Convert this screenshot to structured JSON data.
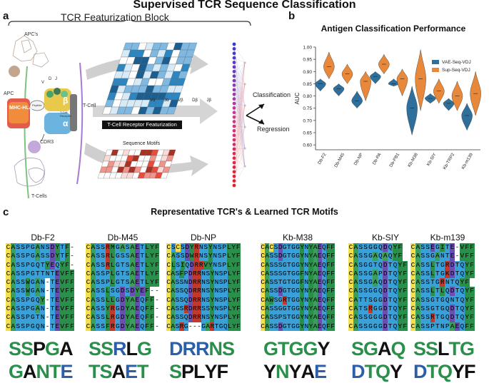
{
  "main_title": "Supervised TCR Sequence Classification",
  "panel_a": {
    "letter": "a",
    "block_title": "TCR Featurization Block",
    "labels": {
      "apcs": "APC's",
      "apc": "APC",
      "mhc": "MHC-HLA",
      "peptide": "Peptide",
      "v": "V",
      "d": "D",
      "j": "J",
      "beta": "β",
      "alpha": "α",
      "tcell_receptor": "T-Cell Receptor",
      "tcell": "T-Cell",
      "cdr3": "CDR3",
      "tcells": "T-Cells",
      "featurization": "T-Cell Receptor Featurization",
      "seq_motifs": "Sequence Motifs",
      "classification": "Classification",
      "regression": "Regression"
    },
    "gene_labels": [
      "Vα",
      "Jα",
      "Vβ",
      "Dβ",
      "Jβ"
    ]
  },
  "panel_b": {
    "letter": "b",
    "chart_data": {
      "type": "violin",
      "title": "Antigen Classification Performance",
      "ylabel": "AUC",
      "ylim": [
        0.58,
        1.0
      ],
      "yticks": [
        0.6,
        0.65,
        0.7,
        0.75,
        0.8,
        0.85,
        0.9,
        0.95,
        1.0
      ],
      "categories": [
        "Db-F2",
        "Db-M45",
        "Db-NP",
        "Db-PA",
        "Db-PB1",
        "Kb-M38",
        "Kb-SIY",
        "Kb-TRP2",
        "Kb-m139"
      ],
      "legend_position": "top-right",
      "series": [
        {
          "name": "VAE-Seq-VDJ",
          "color": "#2e6f9b",
          "median": [
            0.85,
            0.83,
            0.78,
            0.88,
            0.85,
            0.75,
            0.79,
            0.77,
            0.72
          ],
          "min": [
            0.82,
            0.8,
            0.75,
            0.85,
            0.84,
            0.64,
            0.77,
            0.74,
            0.66
          ],
          "max": [
            0.87,
            0.85,
            0.82,
            0.9,
            0.87,
            0.84,
            0.81,
            0.79,
            0.77
          ]
        },
        {
          "name": "Sup-Seq-VDJ",
          "color": "#e8883a",
          "median": [
            0.92,
            0.89,
            0.86,
            0.93,
            0.87,
            0.87,
            0.82,
            0.8,
            0.81
          ],
          "min": [
            0.87,
            0.85,
            0.78,
            0.89,
            0.8,
            0.74,
            0.77,
            0.74,
            0.72
          ],
          "max": [
            0.98,
            0.93,
            0.9,
            0.97,
            0.91,
            0.99,
            0.87,
            0.86,
            0.9
          ]
        }
      ]
    }
  },
  "panel_c": {
    "letter": "c",
    "title": "Representative TCR's & Learned TCR Motifs",
    "panels": [
      {
        "name": "Db-F2",
        "seqs": [
          "CASSPGANSDYTF-",
          "CASSPGASSDYTF-",
          "CASSPGQTYEQYF-",
          "CASSPGTTNTEVFF",
          "CASSWGAN-TEVFF",
          "CASSWGAN-TEVFF",
          "CASSPGQY-TEVFF",
          "CASSPGAN-TEVFF",
          "CASSPGTN-TEVFF",
          "CASSPGQN-TEVFF"
        ],
        "logo1": "SSPGA",
        "logo2": "GANTE"
      },
      {
        "name": "Db-M45",
        "seqs": [
          "CASSRMGASAETLYF",
          "CASSRLGSSAETLYF",
          "CASSRLGTSAETLYF",
          "CASSPLGTSAETLYF",
          "CASSPLGTSAETLYF",
          "CASSLSGDSDYEF--",
          "CASSLLGDYAEQFF-",
          "CASSYRGDYAEQFF-",
          "CASSLRGDYAEQFF-",
          "CASSFRGDYAEQFF-"
        ],
        "logo1": "SSRLG",
        "logo2": "TSAET"
      },
      {
        "name": "Db-NP",
        "seqs": [
          "CSCSDYRNSYNSPLYF",
          "CASSDWRNSYNSPLYF",
          "CLSIQDRRVYNSPLYF",
          "CASFPDRRNSYNSPLYF",
          "CASSNDRRNSYNSPLYF",
          "CASSQDRRNSYNSPLYF",
          "CASSQDRRNSYNSPLYF",
          "CASSRDRRSSYNSPLYF",
          "CASSQDRRNSYNSPLYF",
          "CASRG---GARTGQLYF"
        ],
        "logo1": "DRRNS",
        "logo2": "SPLYF"
      },
      {
        "name": "Kb-M38",
        "seqs": [
          "CACSDGTGGYNYAEQFF",
          "CASSDGTGGYNYAEQFF",
          "CASSSGTGGYNYAEQFF",
          "CASSSGTGGFNYAEQFF",
          "CASSTGTGGFNYAEQFF",
          "CASSDGTGGYNYAEQFF",
          "CAWSGRTGGYNYAEQFF",
          "CASSGGTGGYNYAEQFF",
          "CASSPSTGGYNYAEQFF",
          "CASSDGTGGYNYAEQFF"
        ],
        "logo1": "GTGGY",
        "logo2": "YNYAE"
      },
      {
        "name": "Kb-SIY",
        "seqs": [
          "CASSGGQDQYF",
          "CASSGAQAQYF",
          "CASGGTQDTQYF",
          "CASSGAPDTQYF",
          "CASSGAQDTQYF",
          "CASSGGQDTQYF",
          "CATTSGGDTQYF",
          "CATSRGGDTQYF",
          "CASSGGGDTQYF",
          "CASSGGGDTQYF"
        ],
        "logo1": "SGAQ",
        "logo2": "DTQY"
      },
      {
        "name": "Kb-m139",
        "seqs": [
          "CASSEGITE-VFF",
          "CASSGANTE-VFF",
          "CASSLTGRDTQYF",
          "CASSLTGKDTQYF",
          "CASSTGRNTQYF",
          "CASSLTLQDTQYF",
          "CASSGTGQNTQYF",
          "CASSGTGQDTQYF",
          "CASSRTGQDTQYF",
          "CASSPTNPAEQFF"
        ],
        "logo1": "SSLTG",
        "logo2": "DTQYF"
      }
    ]
  }
}
